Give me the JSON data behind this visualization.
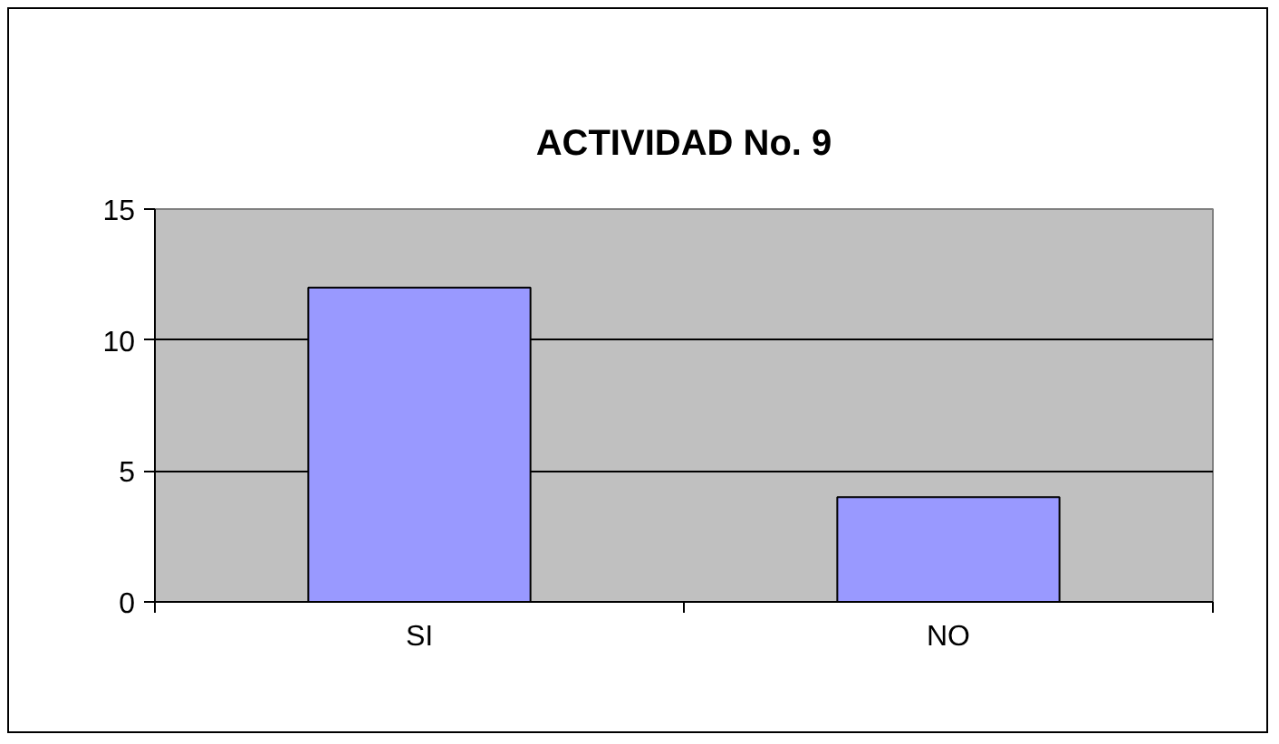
{
  "chart_data": {
    "type": "bar",
    "title": "ACTIVIDAD No. 9",
    "categories": [
      "SI",
      "NO"
    ],
    "values": [
      12,
      4
    ],
    "color": "#9999ff",
    "ylim": [
      0,
      15
    ],
    "yticks": [
      0,
      5,
      10,
      15
    ],
    "grid": "y"
  }
}
